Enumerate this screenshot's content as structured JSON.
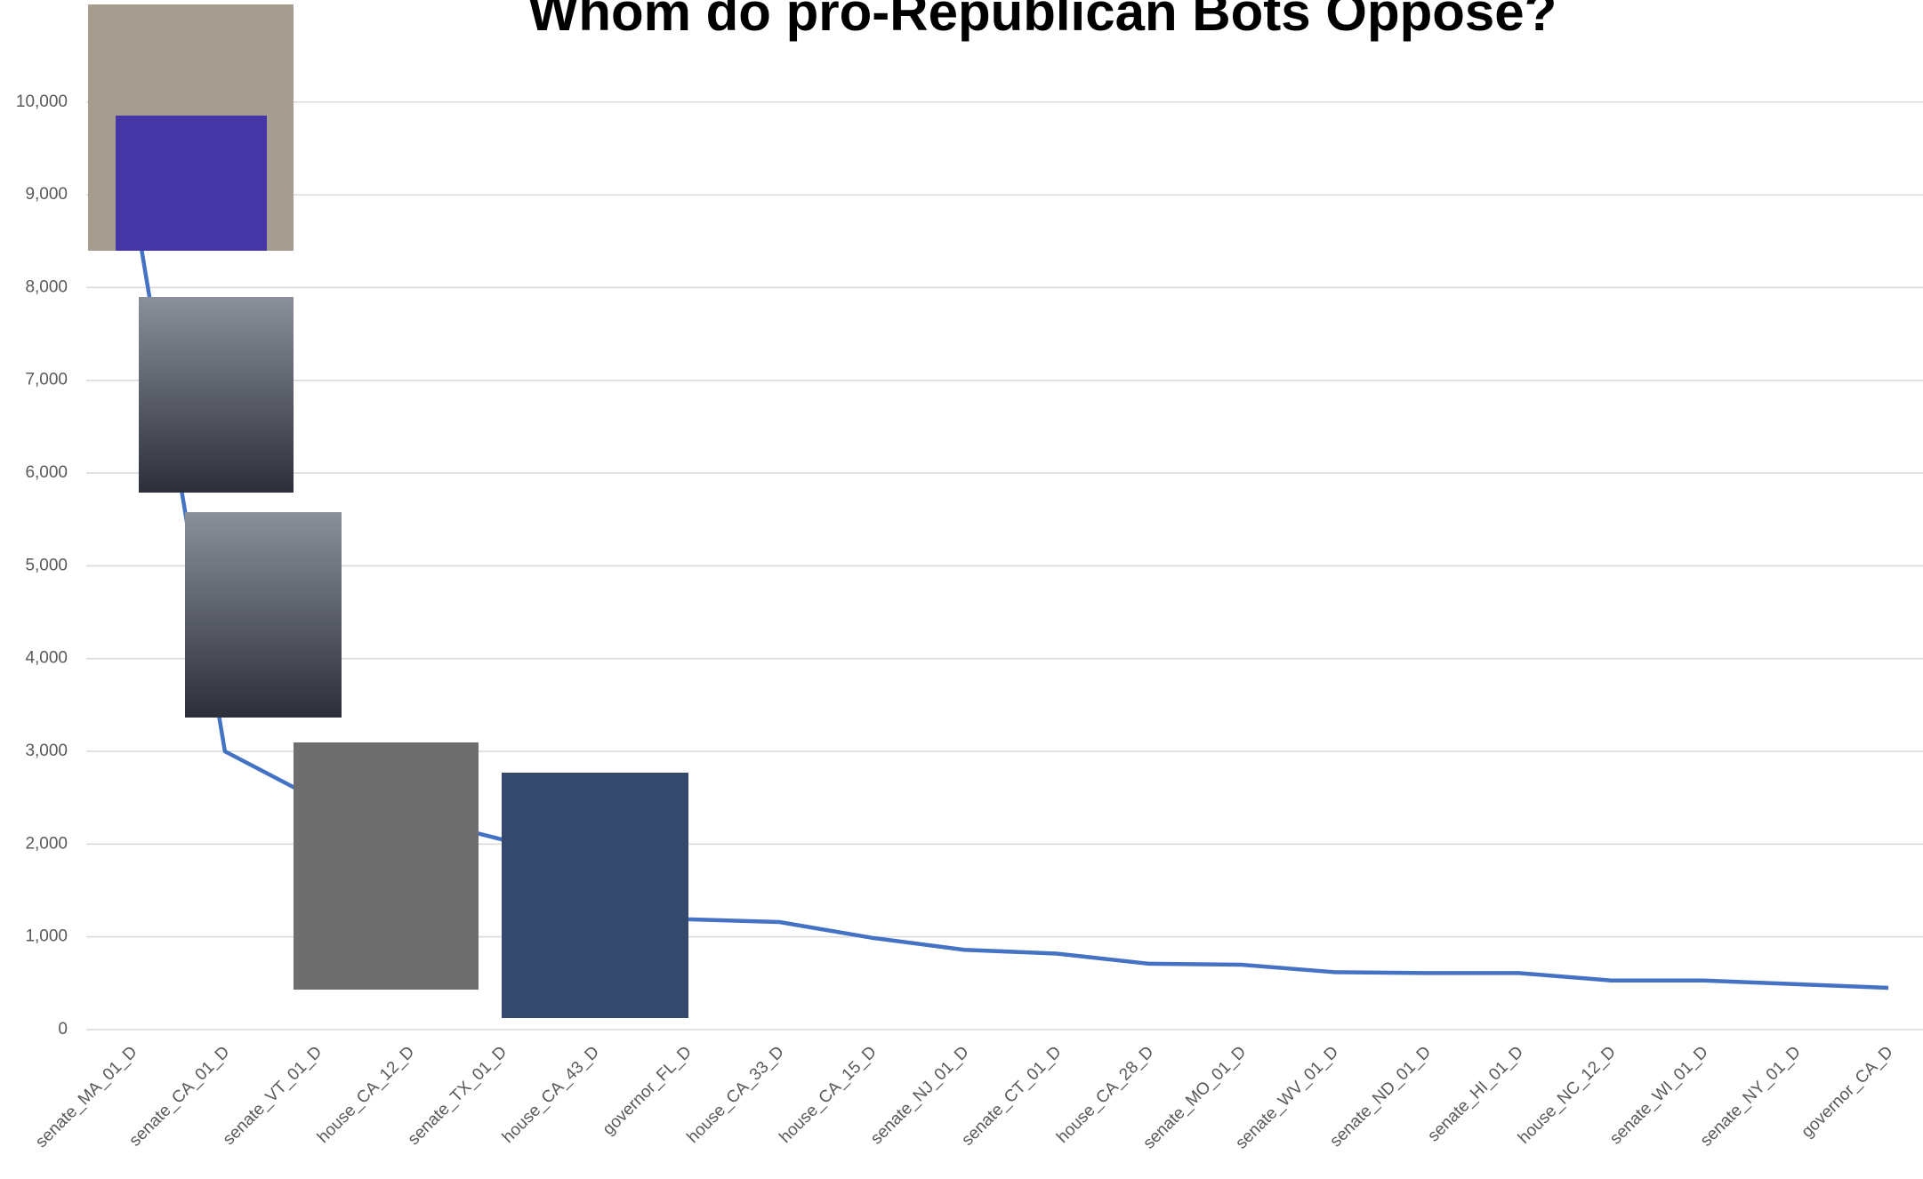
{
  "chart_data": {
    "type": "line",
    "title": "Whom do pro-Republican Bots Oppose?",
    "categories": [
      "senate_MA_01_D",
      "senate_CA_01_D",
      "senate_VT_01_D",
      "house_CA_12_D",
      "senate_TX_01_D",
      "house_CA_43_D",
      "governor_FL_D",
      "house_CA_33_D",
      "house_CA_15_D",
      "senate_NJ_01_D",
      "senate_CT_01_D",
      "house_CA_28_D",
      "senate_MO_01_D",
      "senate_WV_01_D",
      "senate_ND_01_D",
      "senate_HI_01_D",
      "house_NC_12_D",
      "senate_WI_01_D",
      "senate_NY_01_D",
      "governor_CA_D"
    ],
    "series": [
      {
        "name": "pro-Republican bots",
        "color": "#4472c4",
        "values": [
          9000,
          3000,
          2480,
          2300,
          2050,
          1600,
          1190,
          1160,
          990,
          860,
          820,
          710,
          700,
          620,
          610,
          610,
          530,
          530,
          490,
          450
        ]
      }
    ],
    "ylim": [
      0,
      11100
    ],
    "yticks": [
      0,
      {
        "value": 1000,
        "label": "1,000"
      },
      {
        "value": 2000,
        "label": "2,000"
      },
      {
        "value": 3000,
        "label": "3,000"
      },
      {
        "value": 4000,
        "label": "4,000"
      },
      {
        "value": 5000,
        "label": "5,000"
      },
      {
        "value": 6000,
        "label": "6,000"
      },
      {
        "value": 7000,
        "label": "7,000"
      },
      {
        "value": 8000,
        "label": "8,000"
      },
      {
        "value": 9000,
        "label": "9,000"
      },
      {
        "value": 10000,
        "label": "10,000"
      }
    ],
    "grid": true
  }
}
